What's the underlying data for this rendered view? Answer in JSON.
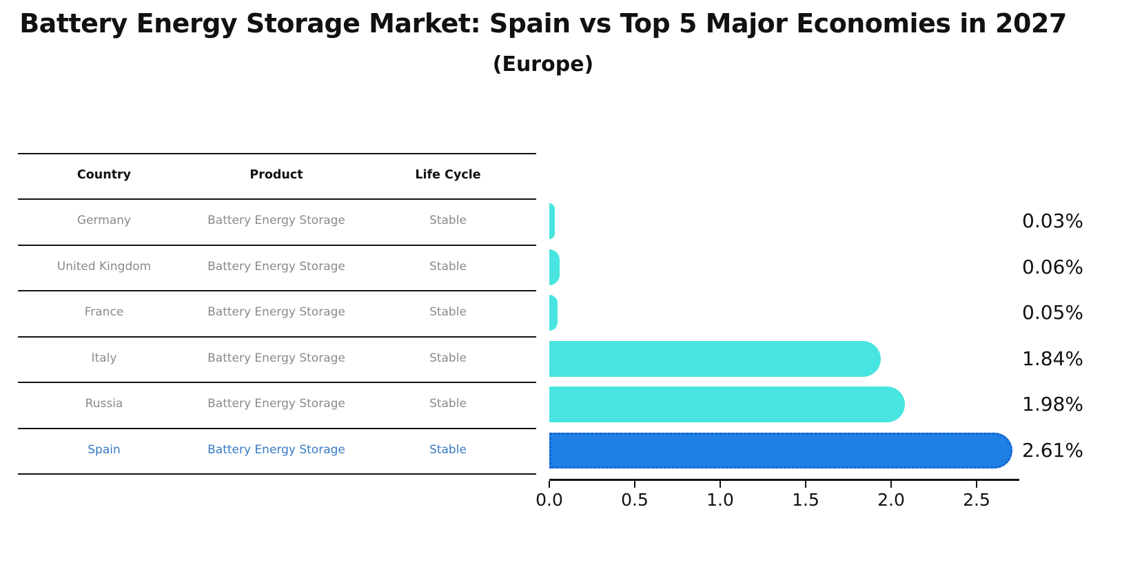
{
  "title": "Battery Energy Storage Market: Spain vs Top 5 Major Economies in 2027",
  "subtitle": "(Europe)",
  "table": {
    "headers": [
      "Country",
      "Product",
      "Life Cycle"
    ],
    "rows": [
      {
        "country": "Germany",
        "product": "Battery Energy Storage",
        "life_cycle": "Stable",
        "value": 0.03,
        "value_label": "0.03%",
        "highlighted": false
      },
      {
        "country": "United Kingdom",
        "product": "Battery Energy Storage",
        "life_cycle": "Stable",
        "value": 0.06,
        "value_label": "0.06%",
        "highlighted": false
      },
      {
        "country": "France",
        "product": "Battery Energy Storage",
        "life_cycle": "Stable",
        "value": 0.05,
        "value_label": "0.05%",
        "highlighted": false
      },
      {
        "country": "Italy",
        "product": "Battery Energy Storage",
        "life_cycle": "Stable",
        "value": 1.84,
        "value_label": "1.84%",
        "highlighted": false
      },
      {
        "country": "Russia",
        "product": "Battery Energy Storage",
        "life_cycle": "Stable",
        "value": 1.98,
        "value_label": "1.98%",
        "highlighted": false
      },
      {
        "country": "Spain",
        "product": "Battery Energy Storage",
        "life_cycle": "Stable",
        "value": 2.61,
        "value_label": "2.61%",
        "highlighted": true
      }
    ]
  },
  "chart_data": {
    "type": "bar",
    "orientation": "horizontal",
    "title": "Battery Energy Storage Market: Spain vs Top 5 Major Economies in 2027 (Europe)",
    "categories": [
      "Germany",
      "United Kingdom",
      "France",
      "Italy",
      "Russia",
      "Spain"
    ],
    "values": [
      0.03,
      0.06,
      0.05,
      1.84,
      1.98,
      2.61
    ],
    "data_labels": [
      "0.03%",
      "0.06%",
      "0.05%",
      "1.84%",
      "1.98%",
      "2.61%"
    ],
    "xlabel": "",
    "ylabel": "",
    "xlim": [
      0,
      2.75
    ],
    "x_tick_values": [
      0.0,
      0.5,
      1.0,
      1.5,
      2.0,
      2.5
    ],
    "x_tick_labels": [
      "0.0",
      "0.5",
      "1.0",
      "1.5",
      "2.0",
      "2.5"
    ],
    "grid": false,
    "legend": false,
    "highlighted_category": "Spain",
    "colors": {
      "bar_default": "#48e5e0",
      "bar_highlight": "#1f7fe3",
      "bar_highlight_edge": "#1263d2",
      "highlight_text": "#3579c4",
      "row_text": "#8a8a8a",
      "axis_text": "#111111"
    }
  }
}
